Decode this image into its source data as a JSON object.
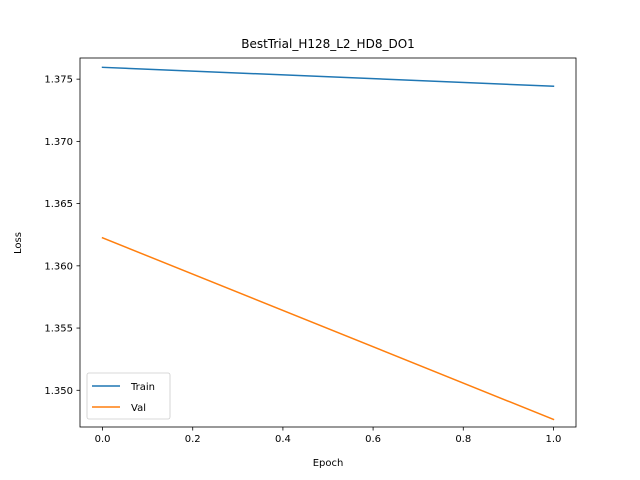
{
  "chart_data": {
    "type": "line",
    "title": "BestTrial_H128_L2_HD8_DO1",
    "xlabel": "Epoch",
    "ylabel": "Loss",
    "xlim": [
      -0.05,
      1.05
    ],
    "ylim": [
      1.34705,
      1.3767
    ],
    "xticks": [
      0.0,
      0.2,
      0.4,
      0.6,
      0.8,
      1.0
    ],
    "xtick_labels": [
      "0.0",
      "0.2",
      "0.4",
      "0.6",
      "0.8",
      "1.0"
    ],
    "yticks": [
      1.35,
      1.355,
      1.36,
      1.365,
      1.37,
      1.375
    ],
    "ytick_labels": [
      "1.350",
      "1.355",
      "1.360",
      "1.365",
      "1.370",
      "1.375"
    ],
    "grid": false,
    "legend_position": "lower-left",
    "series": [
      {
        "name": "Train",
        "color": "#1f77b4",
        "x": [
          0,
          1
        ],
        "y": [
          1.37595,
          1.37443
        ]
      },
      {
        "name": "Val",
        "color": "#ff7f0e",
        "x": [
          0,
          1
        ],
        "y": [
          1.36225,
          1.34766
        ]
      }
    ]
  }
}
